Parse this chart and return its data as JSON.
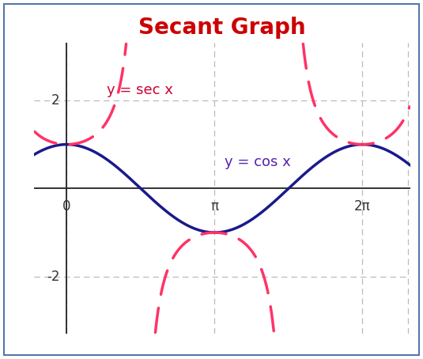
{
  "title": "Secant Graph",
  "title_color": "#cc0000",
  "title_fontsize": 20,
  "title_fontweight": "bold",
  "cos_color": "#1a1a8c",
  "sec_color": "#ff3366",
  "cos_label": "y = cos x",
  "sec_label": "y = sec x",
  "cos_label_color": "#5522aa",
  "sec_label_color": "#cc0033",
  "background_color": "#ffffff",
  "outer_border_color": "#5577aa",
  "xlim_left": -0.7,
  "xlim_right": 7.3,
  "ylim_bottom": -3.3,
  "ylim_top": 3.3,
  "yticks": [
    -2,
    2
  ],
  "xtick_labels": [
    "0",
    "π",
    "2π"
  ],
  "xtick_positions": [
    0,
    3.14159265,
    6.2831853
  ],
  "grid_color": "#bbbbbb",
  "cos_linewidth": 2.5,
  "sec_linewidth": 2.5,
  "sec_dash_on": 9,
  "sec_dash_off": 5,
  "axis_color": "#222222",
  "axis_linewidth": 1.3,
  "label_fontsize": 13,
  "tick_fontsize": 12
}
